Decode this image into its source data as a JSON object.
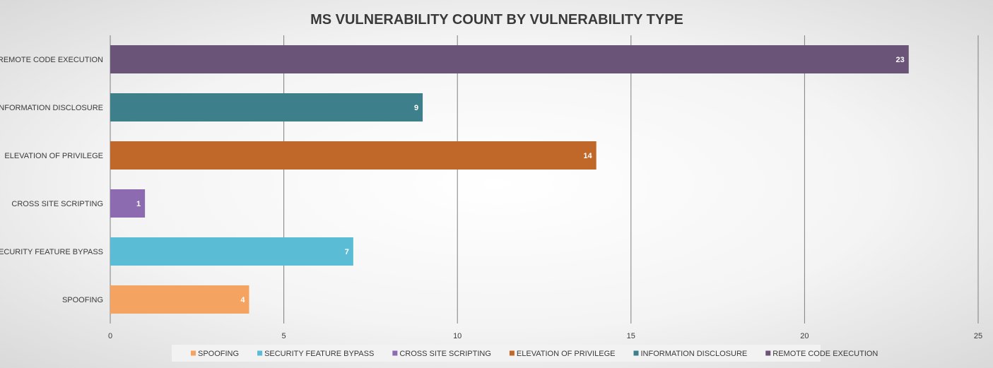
{
  "chart_data": {
    "type": "bar",
    "orientation": "horizontal",
    "title": "MS VULNERABILITY COUNT BY VULNERABILITY TYPE",
    "xlabel": "",
    "ylabel": "",
    "categories": [
      "SPOOFING",
      "SECURITY FEATURE BYPASS",
      "CROSS SITE SCRIPTING",
      "ELEVATION OF PRIVILEGE",
      "INFORMATION DISCLOSURE",
      "REMOTE CODE EXECUTION"
    ],
    "values": [
      4,
      7,
      1,
      14,
      9,
      23
    ],
    "colors": [
      "#f4a460",
      "#5bbcd6",
      "#8c6bb1",
      "#c0682a",
      "#3e7f8c",
      "#6a5478"
    ],
    "xlim": [
      0,
      25
    ],
    "xticks": [
      0,
      5,
      10,
      15,
      20,
      25
    ],
    "grid": "vertical",
    "legend_position": "bottom",
    "data_labels": true
  }
}
